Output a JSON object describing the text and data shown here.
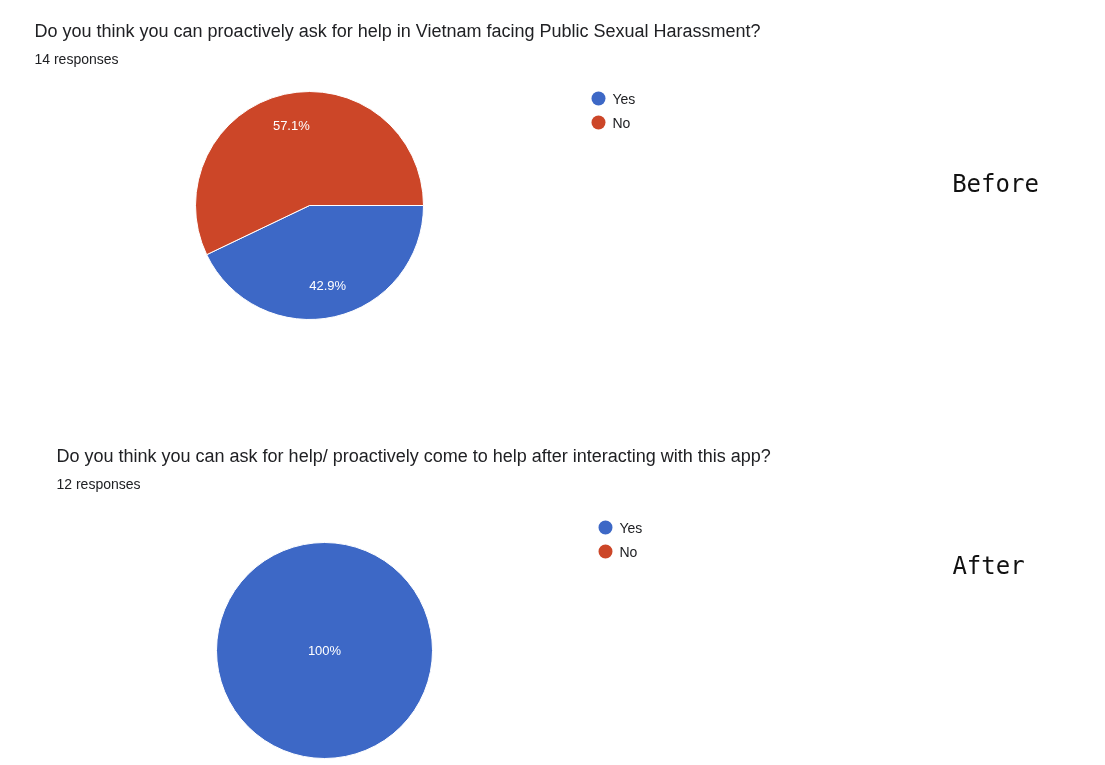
{
  "chart_data": [
    {
      "type": "pie",
      "title": "Do you think you can proactively ask for help in Vietnam facing Public Sexual Harassment?",
      "subtitle": "14 responses",
      "categories": [
        "Yes",
        "No"
      ],
      "values": [
        42.9,
        57.1
      ],
      "colors": [
        "#3d68c6",
        "#cc4628"
      ],
      "value_labels": [
        "42.9%",
        "57.1%"
      ],
      "legend": "right",
      "annotations": [
        "Before"
      ]
    },
    {
      "type": "pie",
      "title": "Do you think you can ask for help/ proactively come to help after interacting with this app?",
      "subtitle": "12 responses",
      "categories": [
        "Yes",
        "No"
      ],
      "values": [
        100,
        0
      ],
      "colors": [
        "#3d68c6",
        "#cc4628"
      ],
      "value_labels": [
        "100%",
        null
      ],
      "legend": "right",
      "annotations": [
        "After"
      ]
    }
  ]
}
